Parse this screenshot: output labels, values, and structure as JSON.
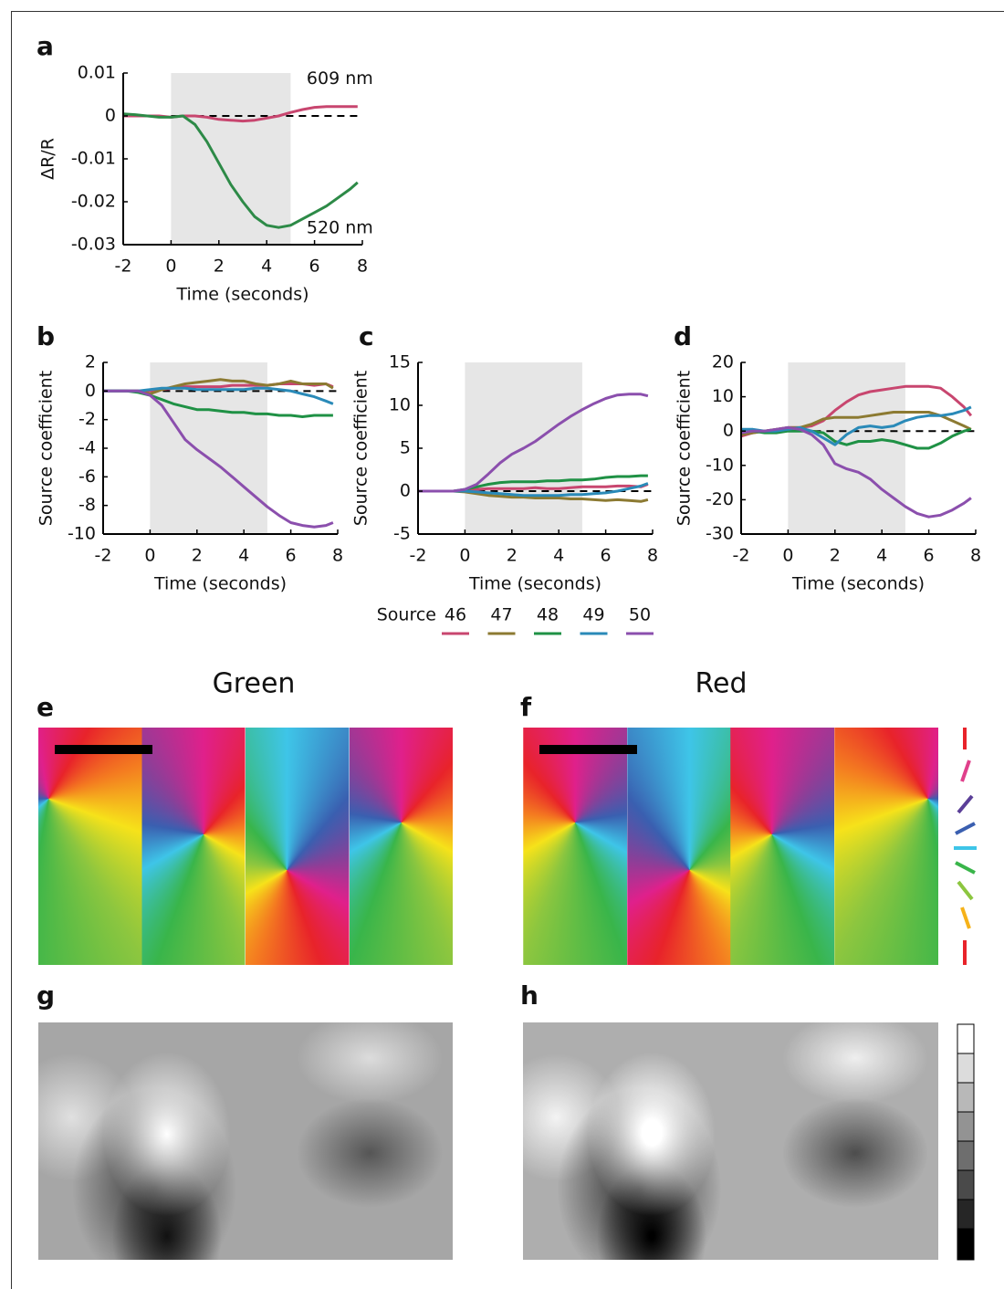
{
  "chart_data": [
    {
      "type": "line",
      "panel_label": "a",
      "xlabel": "Time (seconds)",
      "ylabel": "ΔR/R",
      "x": [
        -2,
        -1.5,
        -1,
        -0.5,
        0,
        0.5,
        1,
        1.5,
        2,
        2.5,
        3,
        3.5,
        4,
        4.5,
        5,
        5.5,
        6,
        6.5,
        7,
        7.5,
        7.8
      ],
      "xlim": [
        -2,
        8
      ],
      "ylim": [
        -0.03,
        0.01
      ],
      "xticks": [
        -2,
        0,
        2,
        4,
        6,
        8
      ],
      "yticks": [
        -0.03,
        -0.02,
        -0.01,
        0,
        0.01
      ],
      "shade": [
        0,
        5
      ],
      "reference_line": 0,
      "series": [
        {
          "name": "609 nm",
          "color": "#c8466f",
          "values": [
            0,
            0,
            0,
            0,
            -0.0003,
            0,
            0,
            -0.0003,
            -0.0008,
            -0.001,
            -0.0012,
            -0.001,
            -0.0005,
            0,
            0.0008,
            0.0015,
            0.002,
            0.0022,
            0.0022,
            0.0022,
            0.0022
          ]
        },
        {
          "name": "520 nm",
          "color": "#2d8a47",
          "values": [
            0.0005,
            0.0003,
            0,
            -0.0003,
            -0.0003,
            0,
            -0.002,
            -0.006,
            -0.011,
            -0.016,
            -0.02,
            -0.0235,
            -0.0255,
            -0.026,
            -0.0255,
            -0.024,
            -0.0225,
            -0.021,
            -0.019,
            -0.017,
            -0.0155
          ]
        }
      ]
    },
    {
      "type": "line",
      "panel_label": "b",
      "xlabel": "Time (seconds)",
      "ylabel": "Source coefficient",
      "x": [
        -2,
        -1.5,
        -1,
        -0.5,
        0,
        0.5,
        1,
        1.5,
        2,
        2.5,
        3,
        3.5,
        4,
        4.5,
        5,
        5.5,
        6,
        6.5,
        7,
        7.5,
        7.8
      ],
      "xlim": [
        -2,
        8
      ],
      "ylim": [
        -10,
        2
      ],
      "xticks": [
        -2,
        0,
        2,
        4,
        6,
        8
      ],
      "yticks": [
        -10,
        -8,
        -6,
        -4,
        -2,
        0,
        2
      ],
      "shade": [
        0,
        5
      ],
      "reference_line": 0,
      "series": [
        {
          "color": "#c8466f",
          "values": [
            0,
            0,
            0,
            0,
            0,
            0.1,
            0.2,
            0.3,
            0.3,
            0.3,
            0.3,
            0.4,
            0.4,
            0.4,
            0.4,
            0.5,
            0.5,
            0.5,
            0.4,
            0.5,
            0.3
          ]
        },
        {
          "color": "#8c7a32",
          "values": [
            0,
            0,
            0,
            0,
            -0.2,
            0.1,
            0.3,
            0.5,
            0.6,
            0.7,
            0.8,
            0.7,
            0.7,
            0.5,
            0.4,
            0.5,
            0.7,
            0.5,
            0.5,
            0.5,
            0.2
          ]
        },
        {
          "color": "#1f9145",
          "values": [
            0,
            0,
            0,
            -0.1,
            -0.3,
            -0.6,
            -0.9,
            -1.1,
            -1.3,
            -1.3,
            -1.4,
            -1.5,
            -1.5,
            -1.6,
            -1.6,
            -1.7,
            -1.7,
            -1.8,
            -1.7,
            -1.7,
            -1.7
          ]
        },
        {
          "color": "#2a8ab8",
          "values": [
            0,
            0,
            0,
            0,
            0.1,
            0.2,
            0.2,
            0.2,
            0.1,
            0.1,
            0.1,
            0.1,
            0.1,
            0.2,
            0.2,
            0.1,
            0,
            -0.2,
            -0.4,
            -0.7,
            -0.9
          ]
        },
        {
          "color": "#8b4fad",
          "values": [
            0,
            0,
            0,
            0,
            -0.3,
            -1,
            -2.2,
            -3.4,
            -4.1,
            -4.7,
            -5.3,
            -6,
            -6.7,
            -7.4,
            -8.1,
            -8.7,
            -9.2,
            -9.4,
            -9.5,
            -9.4,
            -9.2
          ]
        }
      ]
    },
    {
      "type": "line",
      "panel_label": "c",
      "xlabel": "Time (seconds)",
      "ylabel": "Source coefficient",
      "legend_title": "Source",
      "x": [
        -2,
        -1.5,
        -1,
        -0.5,
        0,
        0.5,
        1,
        1.5,
        2,
        2.5,
        3,
        3.5,
        4,
        4.5,
        5,
        5.5,
        6,
        6.5,
        7,
        7.5,
        7.8
      ],
      "xlim": [
        -2,
        8
      ],
      "ylim": [
        -5,
        15
      ],
      "xticks": [
        -2,
        0,
        2,
        4,
        6,
        8
      ],
      "yticks": [
        -5,
        0,
        5,
        10,
        15
      ],
      "shade": [
        0,
        5
      ],
      "reference_line": 0,
      "series": [
        {
          "name": "46",
          "color": "#c8466f",
          "values": [
            0,
            0,
            0,
            0,
            0.1,
            0.2,
            0.3,
            0.3,
            0.3,
            0.3,
            0.4,
            0.3,
            0.3,
            0.4,
            0.5,
            0.5,
            0.5,
            0.6,
            0.6,
            0.5,
            0.8
          ]
        },
        {
          "name": "47",
          "color": "#8c7a32",
          "values": [
            0,
            0,
            0,
            0,
            -0.1,
            -0.3,
            -0.5,
            -0.6,
            -0.7,
            -0.7,
            -0.8,
            -0.8,
            -0.8,
            -0.9,
            -0.9,
            -1,
            -1.1,
            -1,
            -1.1,
            -1.2,
            -1
          ]
        },
        {
          "name": "48",
          "color": "#1f9145",
          "values": [
            0,
            0,
            0,
            0,
            0.2,
            0.5,
            0.8,
            1,
            1.1,
            1.1,
            1.1,
            1.2,
            1.2,
            1.3,
            1.3,
            1.4,
            1.6,
            1.7,
            1.7,
            1.8,
            1.8
          ]
        },
        {
          "name": "49",
          "color": "#2a8ab8",
          "values": [
            0,
            0,
            0,
            0,
            0,
            -0.1,
            -0.2,
            -0.3,
            -0.4,
            -0.5,
            -0.5,
            -0.5,
            -0.5,
            -0.4,
            -0.4,
            -0.3,
            -0.2,
            0,
            0.3,
            0.6,
            0.9
          ]
        },
        {
          "name": "50",
          "color": "#8b4fad",
          "values": [
            0,
            0,
            0,
            0,
            0.2,
            0.8,
            2,
            3.3,
            4.3,
            5,
            5.8,
            6.8,
            7.8,
            8.7,
            9.5,
            10.2,
            10.8,
            11.2,
            11.3,
            11.3,
            11.1
          ]
        }
      ]
    },
    {
      "type": "line",
      "panel_label": "d",
      "xlabel": "Time (seconds)",
      "ylabel": "Source coefficient",
      "x": [
        -2,
        -1.5,
        -1,
        -0.5,
        0,
        0.5,
        1,
        1.5,
        2,
        2.5,
        3,
        3.5,
        4,
        4.5,
        5,
        5.5,
        6,
        6.5,
        7,
        7.5,
        7.8
      ],
      "xlim": [
        -2,
        8
      ],
      "ylim": [
        -30,
        20
      ],
      "xticks": [
        -2,
        0,
        2,
        4,
        6,
        8
      ],
      "yticks": [
        -30,
        -20,
        -10,
        0,
        10,
        20
      ],
      "shade": [
        0,
        5
      ],
      "reference_line": 0,
      "series": [
        {
          "color": "#c8466f",
          "values": [
            -1.5,
            -0.5,
            0,
            0.5,
            1,
            1,
            1.5,
            3,
            6,
            8.5,
            10.5,
            11.5,
            12,
            12.5,
            13,
            13,
            13,
            12.5,
            10,
            7,
            4.5
          ]
        },
        {
          "color": "#8c7a32",
          "values": [
            -1,
            -0.5,
            0,
            0.5,
            1,
            1,
            2,
            3.5,
            4,
            4,
            4,
            4.5,
            5,
            5.5,
            5.5,
            5.5,
            5.5,
            4.5,
            3,
            1.5,
            0.5
          ]
        },
        {
          "color": "#1f9145",
          "values": [
            0.5,
            0,
            -0.5,
            -0.5,
            0,
            0,
            0,
            -0.5,
            -3,
            -4,
            -3,
            -3,
            -2.5,
            -3,
            -4,
            -5,
            -5,
            -3.5,
            -1.5,
            0,
            0.5
          ]
        },
        {
          "color": "#2a8ab8",
          "values": [
            0.5,
            0.5,
            0,
            0,
            0.5,
            1,
            0,
            -2,
            -4,
            -1,
            1,
            1.5,
            1,
            1.5,
            3,
            4,
            4.5,
            4.5,
            5,
            6,
            7
          ]
        },
        {
          "color": "#8b4fad",
          "values": [
            -0.5,
            0,
            0,
            0.5,
            1,
            0.5,
            -1,
            -4,
            -9.5,
            -11,
            -12,
            -14,
            -17,
            -19.5,
            -22,
            -24,
            -25,
            -24.5,
            -23,
            -21,
            -19.5
          ]
        }
      ]
    }
  ],
  "maps": [
    {
      "panel_label": "e",
      "title": "Green"
    },
    {
      "panel_label": "f",
      "title": "Red"
    },
    {
      "panel_label": "g"
    },
    {
      "panel_label": "h"
    }
  ]
}
